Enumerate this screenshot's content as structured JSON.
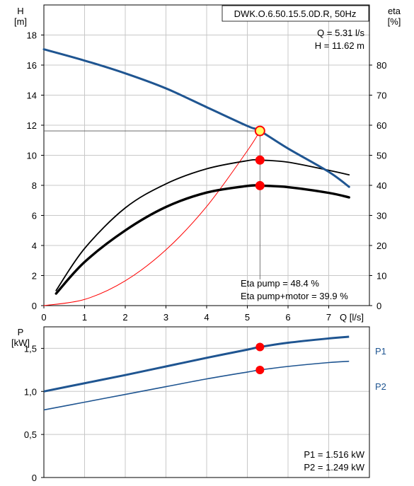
{
  "colors": {
    "head_curve": "#1f5591",
    "power_curve": "#1f5591",
    "efficiency_curves": "#000000",
    "system_curve": "#ff0000",
    "operating_point": "#ff0000",
    "duty_marker_fill": "#ffff66",
    "grid": "#c8c8c8"
  },
  "chart_data": [
    {
      "type": "line",
      "model_label": "DWK.O.6.50.15.5.0D.R, 50Hz",
      "operating_info": [
        "Q = 5.31 l/s",
        "H = 11.62 m"
      ],
      "efficiency_info": [
        "Eta pump = 48.4 %",
        "Eta pump+motor = 39.9 %"
      ],
      "xlabel": "Q [l/s]",
      "ylabel_left": [
        "H",
        "[m]"
      ],
      "ylabel_right": [
        "eta",
        "[%]"
      ],
      "xlim": [
        0,
        8
      ],
      "ylim_left": [
        0,
        20
      ],
      "ylim_right": [
        0,
        100
      ],
      "x_ticks": [
        "0",
        "1",
        "2",
        "3",
        "4",
        "5",
        "6",
        "7"
      ],
      "y_ticks_left": [
        "0",
        "2",
        "4",
        "6",
        "8",
        "10",
        "12",
        "14",
        "16",
        "18"
      ],
      "y_ticks_right": [
        "0",
        "10",
        "20",
        "30",
        "40",
        "50",
        "60",
        "70",
        "80"
      ],
      "grid": true,
      "series": [
        {
          "key": "head",
          "axis": "left",
          "x": [
            0,
            1,
            2,
            3,
            4,
            5,
            5.31,
            6,
            7,
            7.5
          ],
          "y": [
            17.05,
            16.3,
            15.45,
            14.45,
            13.2,
            11.95,
            11.62,
            10.45,
            8.9,
            7.9
          ]
        },
        {
          "key": "eta_pump",
          "axis": "right",
          "x": [
            0.3,
            1,
            2,
            3,
            4,
            5,
            5.31,
            6,
            7,
            7.5
          ],
          "y": [
            5,
            19,
            32.5,
            40.5,
            45.5,
            48.2,
            48.4,
            47.7,
            45,
            43.5
          ]
        },
        {
          "key": "eta_total",
          "axis": "right",
          "x": [
            0.3,
            1,
            2,
            3,
            4,
            5,
            5.31,
            6,
            7,
            7.5
          ],
          "y": [
            4,
            14.5,
            25,
            32.8,
            37.6,
            39.8,
            39.9,
            39.4,
            37.5,
            36
          ]
        },
        {
          "key": "system",
          "axis": "left",
          "x": [
            0,
            1,
            2,
            3,
            4,
            5,
            5.31
          ],
          "y": [
            0,
            0.41,
            1.65,
            3.71,
            6.59,
            10.3,
            11.62
          ]
        }
      ],
      "operating_points": [
        {
          "x": 5.31,
          "y": 11.62,
          "axis": "left",
          "kind": "duty"
        },
        {
          "x": 5.31,
          "y": 48.4,
          "axis": "right",
          "kind": "eta_pump"
        },
        {
          "x": 5.31,
          "y": 39.9,
          "axis": "right",
          "kind": "eta_total"
        }
      ]
    },
    {
      "type": "line",
      "ylabel": [
        "P",
        "[kW]"
      ],
      "xlim": [
        0,
        8
      ],
      "ylim": [
        0,
        1.75
      ],
      "y_ticks": [
        "0",
        "0,5",
        "1,0",
        "1,5"
      ],
      "power_info": [
        "P1 = 1.516 kW",
        "P2 = 1.249 kW"
      ],
      "grid": true,
      "series": [
        {
          "name": "P1",
          "x": [
            0,
            1,
            2,
            3,
            4,
            5,
            5.31,
            6,
            7,
            7.5
          ],
          "y": [
            1.0,
            1.095,
            1.19,
            1.29,
            1.39,
            1.485,
            1.516,
            1.565,
            1.615,
            1.635
          ]
        },
        {
          "name": "P2",
          "x": [
            0,
            1,
            2,
            3,
            4,
            5,
            5.31,
            6,
            7,
            7.5
          ],
          "y": [
            0.785,
            0.875,
            0.965,
            1.055,
            1.145,
            1.225,
            1.249,
            1.29,
            1.335,
            1.35
          ]
        }
      ],
      "operating_points": [
        {
          "x": 5.31,
          "y": 1.516,
          "kind": "p1"
        },
        {
          "x": 5.31,
          "y": 1.249,
          "kind": "p2"
        }
      ]
    }
  ]
}
